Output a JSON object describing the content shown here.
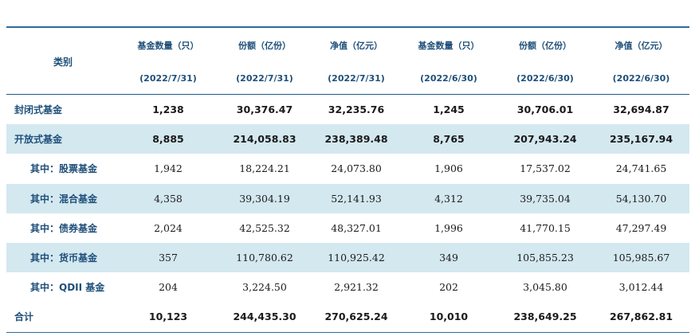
{
  "table": {
    "category_header": "类别",
    "columns": [
      {
        "title": "基金数量（只）",
        "date": "(2022/7/31)"
      },
      {
        "title": "份额（亿份）",
        "date": "(2022/7/31)"
      },
      {
        "title": "净值（亿元）",
        "date": "(2022/7/31)"
      },
      {
        "title": "基金数量（只）",
        "date": "(2022/6/30)"
      },
      {
        "title": "份额（亿份）",
        "date": "(2022/6/30)"
      },
      {
        "title": "净值（亿元）",
        "date": "(2022/6/30)"
      }
    ],
    "rows": [
      {
        "label": "封闭式基金",
        "values": [
          "1,238",
          "30,376.47",
          "32,235.76",
          "1,245",
          "30,706.01",
          "32,694.87"
        ]
      },
      {
        "label": "开放式基金",
        "values": [
          "8,885",
          "214,058.83",
          "238,389.48",
          "8,765",
          "207,943.24",
          "235,167.94"
        ]
      },
      {
        "label": "其中：股票基金",
        "values": [
          "1,942",
          "18,224.21",
          "24,073.80",
          "1,906",
          "17,537.02",
          "24,741.65"
        ]
      },
      {
        "label": "其中：混合基金",
        "values": [
          "4,358",
          "39,304.19",
          "52,141.93",
          "4,312",
          "39,735.04",
          "54,130.70"
        ]
      },
      {
        "label": "其中：债券基金",
        "values": [
          "2,024",
          "42,525.32",
          "48,327.01",
          "1,996",
          "41,770.15",
          "47,297.49"
        ]
      },
      {
        "label": "其中：货币基金",
        "values": [
          "357",
          "110,780.62",
          "110,925.42",
          "349",
          "105,855.23",
          "105,985.67"
        ]
      },
      {
        "label": "其中：QDII 基金",
        "values": [
          "204",
          "3,224.50",
          "2,921.32",
          "202",
          "3,045.80",
          "3,012.44"
        ]
      },
      {
        "label": "合计",
        "values": [
          "10,123",
          "244,435.30",
          "270,625.24",
          "10,010",
          "238,649.25",
          "267,862.81"
        ]
      }
    ]
  },
  "colors": {
    "header_text": "#1f4f7a",
    "row_shade": "#d4e8f0",
    "rule": "#2f6b9a"
  }
}
